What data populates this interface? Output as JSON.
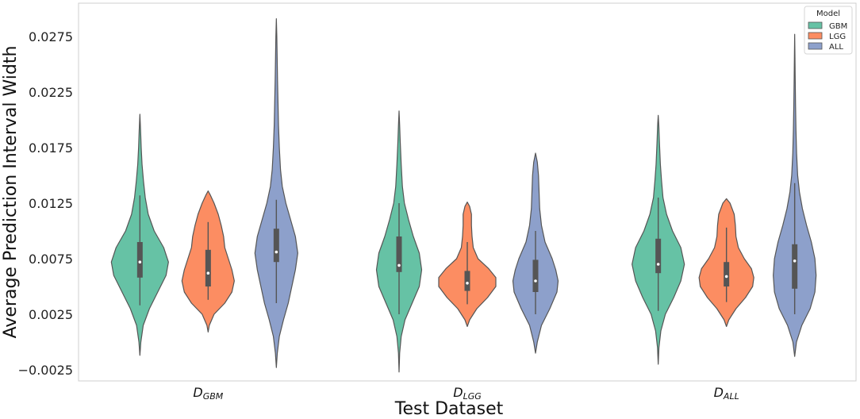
{
  "chart_data": {
    "type": "violin",
    "xlabel": "Test Dataset",
    "ylabel": "Average Prediction Interval Width",
    "ylim": [
      -0.0035,
      0.0305
    ],
    "yticks": [
      -0.0025,
      0.0025,
      0.0075,
      0.0125,
      0.0175,
      0.0225,
      0.0275
    ],
    "ytick_labels": [
      "−0.0025",
      "0.0025",
      "0.0075",
      "0.0125",
      "0.0175",
      "0.0225",
      "0.0275"
    ],
    "grid": false,
    "categories": [
      {
        "main": "D",
        "sub": "GBM"
      },
      {
        "main": "D",
        "sub": "LGG"
      },
      {
        "main": "D",
        "sub": "ALL"
      }
    ],
    "legend": {
      "title": "Model",
      "placement": "top-right"
    },
    "series": [
      {
        "name": "GBM",
        "color": "#66c2a5",
        "violins": [
          {
            "min": -0.0012,
            "max": 0.0205,
            "q1": 0.0058,
            "median": 0.0072,
            "q3": 0.009,
            "whisker_low": 0.0033,
            "whisker_high": 0.0132,
            "density": [
              [
                -0.0012,
                0
              ],
              [
                0.0,
                0.8
              ],
              [
                0.0015,
                2.8
              ],
              [
                0.003,
                8
              ],
              [
                0.0045,
                15
              ],
              [
                0.006,
                22
              ],
              [
                0.0072,
                24
              ],
              [
                0.0085,
                20
              ],
              [
                0.01,
                12
              ],
              [
                0.0115,
                7
              ],
              [
                0.013,
                4.5
              ],
              [
                0.0145,
                3
              ],
              [
                0.016,
                1.8
              ],
              [
                0.0175,
                1.1
              ],
              [
                0.019,
                0.6
              ],
              [
                0.0205,
                0
              ]
            ]
          },
          {
            "min": -0.0027,
            "max": 0.0208,
            "q1": 0.0063,
            "median": 0.0069,
            "q3": 0.0095,
            "whisker_low": 0.0025,
            "whisker_high": 0.0125,
            "density": [
              [
                -0.0027,
                0
              ],
              [
                -0.001,
                0.5
              ],
              [
                0.0005,
                1.8
              ],
              [
                0.002,
                5
              ],
              [
                0.0035,
                11
              ],
              [
                0.005,
                17
              ],
              [
                0.0065,
                19
              ],
              [
                0.008,
                17
              ],
              [
                0.0095,
                12
              ],
              [
                0.011,
                8
              ],
              [
                0.0125,
                4.5
              ],
              [
                0.014,
                2.8
              ],
              [
                0.016,
                1.8
              ],
              [
                0.018,
                1
              ],
              [
                0.0195,
                0.5
              ],
              [
                0.0208,
                0
              ]
            ]
          },
          {
            "min": -0.002,
            "max": 0.0204,
            "q1": 0.0062,
            "median": 0.007,
            "q3": 0.0093,
            "whisker_low": 0.0028,
            "whisker_high": 0.013,
            "density": [
              [
                -0.002,
                0
              ],
              [
                -0.0005,
                0.6
              ],
              [
                0.001,
                2.2
              ],
              [
                0.0025,
                6
              ],
              [
                0.004,
                13
              ],
              [
                0.0055,
                19
              ],
              [
                0.007,
                22
              ],
              [
                0.0085,
                19
              ],
              [
                0.01,
                12
              ],
              [
                0.0115,
                7
              ],
              [
                0.013,
                4
              ],
              [
                0.0145,
                2.8
              ],
              [
                0.016,
                1.8
              ],
              [
                0.018,
                1
              ],
              [
                0.0195,
                0.5
              ],
              [
                0.0204,
                0
              ]
            ]
          }
        ]
      },
      {
        "name": "LGG",
        "color": "#fc8d62",
        "violins": [
          {
            "min": 0.0009,
            "max": 0.0136,
            "q1": 0.005,
            "median": 0.0062,
            "q3": 0.0083,
            "whisker_low": 0.0038,
            "whisker_high": 0.0108,
            "density": [
              [
                0.0009,
                0
              ],
              [
                0.0015,
                1
              ],
              [
                0.0025,
                5
              ],
              [
                0.0035,
                14
              ],
              [
                0.0045,
                20
              ],
              [
                0.0055,
                22
              ],
              [
                0.0065,
                20
              ],
              [
                0.0075,
                17
              ],
              [
                0.0085,
                14
              ],
              [
                0.0095,
                13
              ],
              [
                0.0105,
                11
              ],
              [
                0.0115,
                8.5
              ],
              [
                0.0125,
                5
              ],
              [
                0.0132,
                2
              ],
              [
                0.0136,
                0
              ]
            ]
          },
          {
            "min": 0.0014,
            "max": 0.0126,
            "q1": 0.0046,
            "median": 0.0053,
            "q3": 0.0064,
            "whisker_low": 0.0034,
            "whisker_high": 0.009,
            "density": [
              [
                0.0014,
                0
              ],
              [
                0.002,
                2
              ],
              [
                0.003,
                8
              ],
              [
                0.004,
                17
              ],
              [
                0.005,
                24
              ],
              [
                0.0058,
                24
              ],
              [
                0.0066,
                18
              ],
              [
                0.0075,
                9
              ],
              [
                0.0085,
                5
              ],
              [
                0.0095,
                4
              ],
              [
                0.0105,
                3.5
              ],
              [
                0.0115,
                3.5
              ],
              [
                0.0122,
                2
              ],
              [
                0.0126,
                0
              ]
            ]
          },
          {
            "min": 0.0014,
            "max": 0.0129,
            "q1": 0.005,
            "median": 0.0059,
            "q3": 0.0072,
            "whisker_low": 0.0036,
            "whisker_high": 0.0103,
            "density": [
              [
                0.0014,
                0
              ],
              [
                0.002,
                2
              ],
              [
                0.003,
                8
              ],
              [
                0.004,
                16
              ],
              [
                0.005,
                22
              ],
              [
                0.0058,
                23
              ],
              [
                0.0066,
                21
              ],
              [
                0.0075,
                15
              ],
              [
                0.0085,
                10
              ],
              [
                0.0095,
                8
              ],
              [
                0.0105,
                7.5
              ],
              [
                0.0115,
                6.5
              ],
              [
                0.0125,
                3
              ],
              [
                0.0129,
                0
              ]
            ]
          }
        ]
      },
      {
        "name": "ALL",
        "color": "#8da0cb",
        "violins": [
          {
            "min": -0.0023,
            "max": 0.0291,
            "q1": 0.0072,
            "median": 0.0081,
            "q3": 0.0102,
            "whisker_low": 0.0035,
            "whisker_high": 0.0128,
            "density": [
              [
                -0.0023,
                0
              ],
              [
                -0.001,
                0.8
              ],
              [
                0.0005,
                2.5
              ],
              [
                0.002,
                6
              ],
              [
                0.0035,
                10
              ],
              [
                0.005,
                13
              ],
              [
                0.0065,
                16
              ],
              [
                0.008,
                18
              ],
              [
                0.0095,
                16
              ],
              [
                0.011,
                12
              ],
              [
                0.0125,
                8
              ],
              [
                0.014,
                5
              ],
              [
                0.0155,
                3.5
              ],
              [
                0.0175,
                2.5
              ],
              [
                0.0195,
                1.8
              ],
              [
                0.0215,
                1.4
              ],
              [
                0.0235,
                1
              ],
              [
                0.0255,
                0.7
              ],
              [
                0.0275,
                0.4
              ],
              [
                0.0291,
                0
              ]
            ]
          },
          {
            "min": -0.001,
            "max": 0.017,
            "q1": 0.0045,
            "median": 0.0055,
            "q3": 0.0074,
            "whisker_low": 0.0025,
            "whisker_high": 0.01,
            "density": [
              [
                -0.001,
                0
              ],
              [
                0.0,
                1.5
              ],
              [
                0.0015,
                5
              ],
              [
                0.003,
                12
              ],
              [
                0.0045,
                18
              ],
              [
                0.0055,
                19
              ],
              [
                0.0065,
                17
              ],
              [
                0.0075,
                14
              ],
              [
                0.009,
                8
              ],
              [
                0.0105,
                5
              ],
              [
                0.012,
                3.5
              ],
              [
                0.0135,
                3
              ],
              [
                0.015,
                2.5
              ],
              [
                0.0162,
                1.5
              ],
              [
                0.017,
                0
              ]
            ]
          },
          {
            "min": -0.0013,
            "max": 0.0277,
            "q1": 0.0048,
            "median": 0.0073,
            "q3": 0.0088,
            "whisker_low": 0.0025,
            "whisker_high": 0.0143,
            "density": [
              [
                -0.0013,
                0
              ],
              [
                0.0,
                1.5
              ],
              [
                0.0015,
                6
              ],
              [
                0.003,
                13
              ],
              [
                0.0045,
                17
              ],
              [
                0.006,
                18
              ],
              [
                0.0075,
                17
              ],
              [
                0.009,
                14
              ],
              [
                0.0105,
                10
              ],
              [
                0.012,
                6.5
              ],
              [
                0.0135,
                4
              ],
              [
                0.015,
                2.5
              ],
              [
                0.017,
                1.6
              ],
              [
                0.019,
                1.1
              ],
              [
                0.0215,
                0.7
              ],
              [
                0.024,
                0.4
              ],
              [
                0.026,
                0.2
              ],
              [
                0.0277,
                0
              ]
            ]
          }
        ]
      }
    ]
  }
}
